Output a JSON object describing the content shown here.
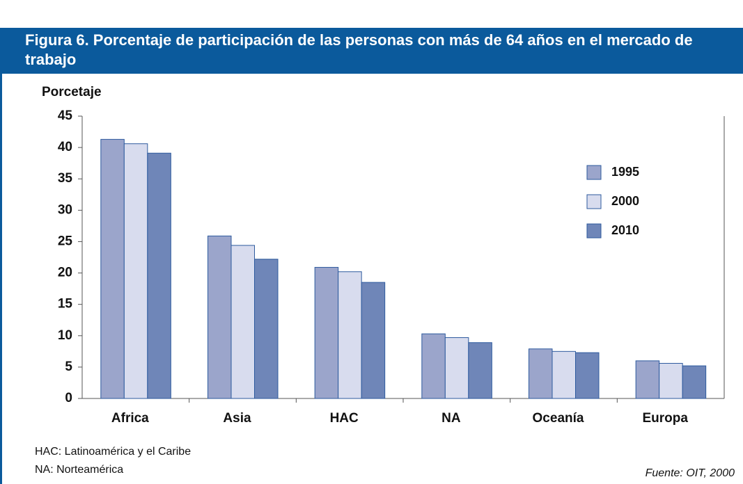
{
  "chart_data": {
    "type": "bar",
    "title": "Figura 6.  Porcentaje de participación de las personas con más de 64 años en el mercado de trabajo",
    "y_label": "Porcetaje",
    "categories": [
      "Africa",
      "Asia",
      "HAC",
      "NA",
      "Oceanía",
      "Europa"
    ],
    "series": [
      {
        "name": "1995",
        "color": "#9ba5cb",
        "values": [
          41.3,
          25.9,
          20.9,
          10.3,
          7.9,
          6.0
        ]
      },
      {
        "name": "2000",
        "color": "#d8dcee",
        "values": [
          40.6,
          24.4,
          20.2,
          9.7,
          7.5,
          5.6
        ]
      },
      {
        "name": "2010",
        "color": "#6f86b8",
        "values": [
          39.1,
          22.2,
          18.5,
          8.9,
          7.3,
          5.2
        ]
      }
    ],
    "ylim": [
      0,
      45
    ],
    "yticks": [
      0,
      5,
      10,
      15,
      20,
      25,
      30,
      35,
      40,
      45
    ],
    "notes": [
      "HAC: Latinoamérica y el Caribe",
      "NA: Norteamérica"
    ],
    "source": "Fuente: OIT, 2000"
  }
}
